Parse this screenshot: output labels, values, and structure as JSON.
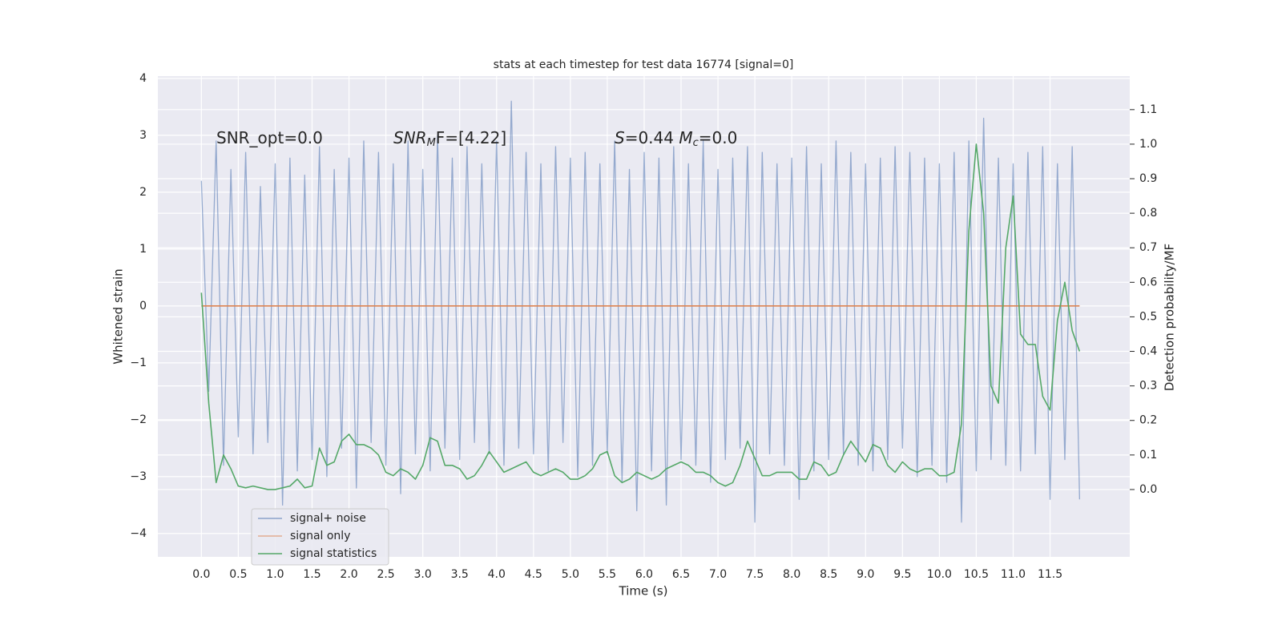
{
  "chart_data": {
    "type": "line",
    "title": "stats at each timestep for test data 16774 [signal=0]",
    "xlabel": "Time (s)",
    "ylabel": "Whitened strain",
    "y2label": "Detection probability/MF",
    "x": [
      0.0,
      0.1,
      0.2,
      0.3,
      0.4,
      0.5,
      0.6,
      0.7,
      0.8,
      0.9,
      1.0,
      1.1,
      1.2,
      1.3,
      1.4,
      1.5,
      1.6,
      1.7,
      1.8,
      1.9,
      2.0,
      2.1,
      2.2,
      2.3,
      2.4,
      2.5,
      2.6,
      2.7,
      2.8,
      2.9,
      3.0,
      3.1,
      3.2,
      3.3,
      3.4,
      3.5,
      3.6,
      3.7,
      3.8,
      3.9,
      4.0,
      4.1,
      4.2,
      4.3,
      4.4,
      4.5,
      4.6,
      4.7,
      4.8,
      4.9,
      5.0,
      5.1,
      5.2,
      5.3,
      5.4,
      5.5,
      5.6,
      5.7,
      5.8,
      5.9,
      6.0,
      6.1,
      6.2,
      6.3,
      6.4,
      6.5,
      6.6,
      6.7,
      6.8,
      6.9,
      7.0,
      7.1,
      7.2,
      7.3,
      7.4,
      7.5,
      7.6,
      7.7,
      7.8,
      7.9,
      8.0,
      8.1,
      8.2,
      8.3,
      8.4,
      8.5,
      8.6,
      8.7,
      8.8,
      8.9,
      9.0,
      9.1,
      9.2,
      9.3,
      9.4,
      9.5,
      9.6,
      9.7,
      9.8,
      9.9,
      10.0,
      10.1,
      10.2,
      10.3,
      10.4,
      10.5,
      10.6,
      10.7,
      10.8,
      10.9,
      11.0,
      11.1,
      11.2,
      11.3,
      11.4,
      11.5,
      11.6,
      11.7,
      11.8,
      11.9
    ],
    "series": [
      {
        "name": "signal+ noise",
        "color": "#4c72b0",
        "values": [
          2.2,
          -1.5,
          2.9,
          -2.8,
          2.4,
          -2.3,
          2.7,
          -2.6,
          2.1,
          -2.4,
          2.5,
          -3.5,
          2.6,
          -2.9,
          2.3,
          -2.7,
          2.8,
          -3.0,
          2.4,
          -2.5,
          2.6,
          -3.2,
          2.9,
          -2.4,
          2.7,
          -2.8,
          2.5,
          -3.3,
          2.9,
          -2.6,
          2.4,
          -2.9,
          3.0,
          -2.5,
          2.6,
          -2.7,
          2.8,
          -2.4,
          2.5,
          -2.6,
          2.9,
          -2.8,
          3.6,
          -2.5,
          2.7,
          -2.6,
          2.5,
          -2.9,
          2.8,
          -2.4,
          2.6,
          -3.0,
          2.7,
          -2.8,
          2.5,
          -2.6,
          2.9,
          -3.1,
          2.4,
          -3.6,
          2.7,
          -2.9,
          2.6,
          -3.5,
          2.8,
          -2.7,
          2.5,
          -2.8,
          2.9,
          -3.1,
          2.4,
          -2.7,
          2.6,
          -2.5,
          2.8,
          -3.8,
          2.7,
          -2.6,
          2.5,
          -2.8,
          2.6,
          -3.4,
          2.8,
          -2.9,
          2.5,
          -2.7,
          2.9,
          -2.6,
          2.7,
          -2.8,
          2.5,
          -2.9,
          2.6,
          -2.7,
          2.8,
          -2.5,
          2.7,
          -3.0,
          2.6,
          -2.8,
          2.5,
          -3.1,
          2.7,
          -3.8,
          2.9,
          -2.9,
          3.3,
          -2.7,
          2.6,
          -2.8,
          2.5,
          -2.9,
          2.7,
          -2.6,
          2.8,
          -3.4,
          2.5,
          -2.7,
          2.8,
          -3.4
        ]
      },
      {
        "name": "signal only",
        "color": "#dd8452",
        "values": [
          0,
          0,
          0,
          0,
          0,
          0,
          0,
          0,
          0,
          0,
          0,
          0,
          0,
          0,
          0,
          0,
          0,
          0,
          0,
          0,
          0,
          0,
          0,
          0,
          0,
          0,
          0,
          0,
          0,
          0,
          0,
          0,
          0,
          0,
          0,
          0,
          0,
          0,
          0,
          0,
          0,
          0,
          0,
          0,
          0,
          0,
          0,
          0,
          0,
          0,
          0,
          0,
          0,
          0,
          0,
          0,
          0,
          0,
          0,
          0,
          0,
          0,
          0,
          0,
          0,
          0,
          0,
          0,
          0,
          0,
          0,
          0,
          0,
          0,
          0,
          0,
          0,
          0,
          0,
          0,
          0,
          0,
          0,
          0,
          0,
          0,
          0,
          0,
          0,
          0,
          0,
          0,
          0,
          0,
          0,
          0,
          0,
          0,
          0,
          0,
          0,
          0,
          0,
          0,
          0,
          0,
          0,
          0,
          0,
          0,
          0,
          0,
          0,
          0,
          0,
          0,
          0,
          0,
          0,
          0
        ]
      },
      {
        "name": "signal statistics",
        "color": "#55a868",
        "axis": "y2",
        "values": [
          0.57,
          0.25,
          0.02,
          0.1,
          0.06,
          0.01,
          0.005,
          0.01,
          0.005,
          0.0,
          0.0,
          0.005,
          0.01,
          0.03,
          0.005,
          0.01,
          0.12,
          0.07,
          0.08,
          0.14,
          0.16,
          0.13,
          0.13,
          0.12,
          0.1,
          0.05,
          0.04,
          0.06,
          0.05,
          0.03,
          0.07,
          0.15,
          0.14,
          0.07,
          0.07,
          0.06,
          0.03,
          0.04,
          0.07,
          0.11,
          0.08,
          0.05,
          0.06,
          0.07,
          0.08,
          0.05,
          0.04,
          0.05,
          0.06,
          0.05,
          0.03,
          0.03,
          0.04,
          0.06,
          0.1,
          0.11,
          0.04,
          0.02,
          0.03,
          0.05,
          0.04,
          0.03,
          0.04,
          0.06,
          0.07,
          0.08,
          0.07,
          0.05,
          0.05,
          0.04,
          0.02,
          0.01,
          0.02,
          0.07,
          0.14,
          0.09,
          0.04,
          0.04,
          0.05,
          0.05,
          0.05,
          0.03,
          0.03,
          0.08,
          0.07,
          0.04,
          0.05,
          0.1,
          0.14,
          0.11,
          0.08,
          0.13,
          0.12,
          0.07,
          0.05,
          0.08,
          0.06,
          0.05,
          0.06,
          0.06,
          0.04,
          0.04,
          0.05,
          0.19,
          0.75,
          1.0,
          0.8,
          0.3,
          0.25,
          0.7,
          0.85,
          0.45,
          0.42,
          0.42,
          0.27,
          0.23,
          0.49,
          0.6,
          0.46,
          0.4
        ]
      }
    ],
    "annotations": [
      {
        "parts": [
          "SNR_opt=0.0"
        ],
        "styles": [
          "normal"
        ]
      },
      {
        "parts": [
          "SNR",
          "M",
          "F=[4.22]"
        ],
        "styles": [
          "italic",
          "sub",
          "normal"
        ]
      },
      {
        "parts": [
          "S",
          "=0.44   ",
          "M",
          "c",
          "=0.0"
        ],
        "styles": [
          "italic",
          "normal",
          "italic",
          "sub",
          "normal"
        ]
      }
    ],
    "xlim": [
      -0.59,
      12.58
    ],
    "xticks": [
      {
        "value": 0,
        "label": "0.0"
      },
      0.5,
      {
        "value": 1,
        "label": "1.0"
      },
      1.5,
      {
        "value": 2,
        "label": "2.0"
      },
      2.5,
      {
        "value": 3,
        "label": "3.0"
      },
      3.5,
      {
        "value": 4,
        "label": "4.0"
      },
      4.5,
      {
        "value": 5,
        "label": "5.0"
      },
      5.5,
      {
        "value": 6,
        "label": "6.0"
      },
      6.5,
      {
        "value": 7,
        "label": "7.0"
      },
      7.5,
      {
        "value": 8,
        "label": "8.0"
      },
      8.5,
      {
        "value": 9,
        "label": "9.0"
      },
      9.5,
      {
        "value": 10,
        "label": "10.0"
      },
      10.5,
      {
        "value": 11,
        "label": "11.0"
      },
      11.5
    ],
    "ylim": [
      -4.41,
      4.04
    ],
    "yticks": [
      {
        "value": -4,
        "label": "−4"
      },
      {
        "value": -3,
        "label": "−3"
      },
      {
        "value": -2,
        "label": "−2"
      },
      {
        "value": -1,
        "label": "−1"
      },
      0,
      1,
      2,
      3,
      4
    ],
    "y2lim": [
      -0.195,
      1.197
    ],
    "y2ticks": [
      {
        "value": 0,
        "label": "0.0"
      },
      0.1,
      0.2,
      0.3,
      0.4,
      0.5,
      0.6,
      0.7,
      0.8,
      0.9,
      {
        "value": 1,
        "label": "1.0"
      },
      1.1
    ],
    "grid": true,
    "legend": "lower left"
  }
}
